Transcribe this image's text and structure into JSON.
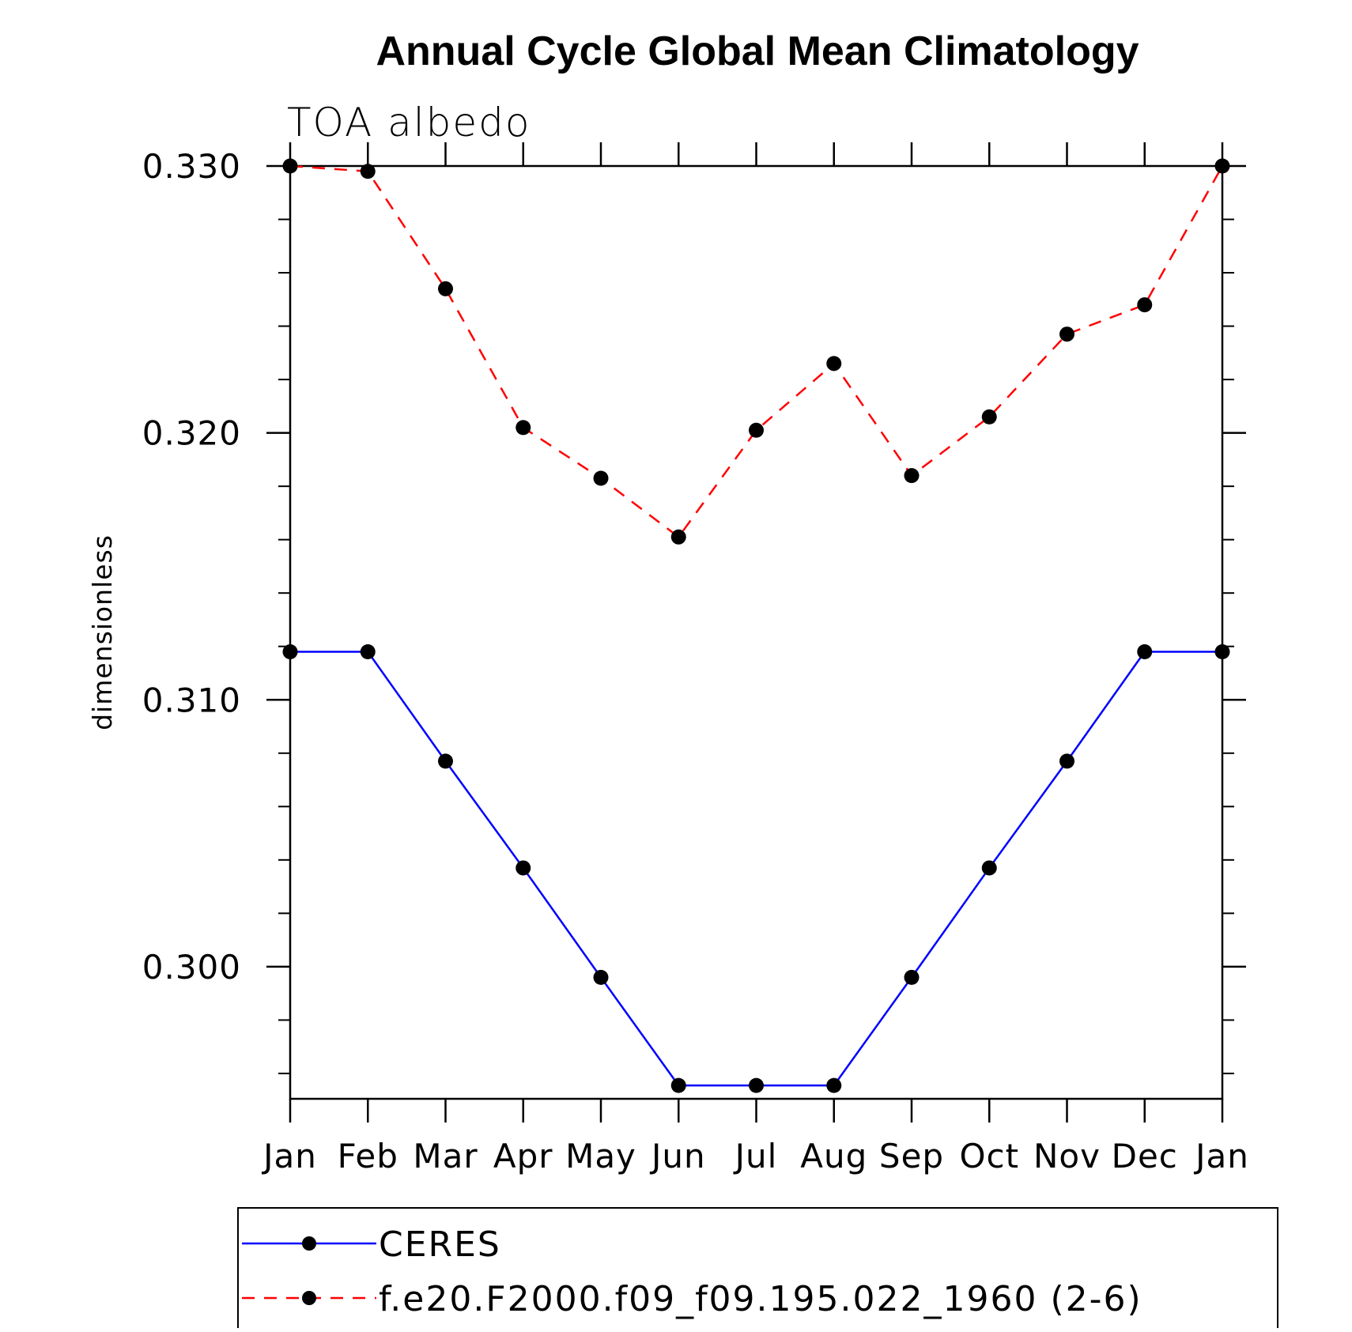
{
  "chart_data": {
    "type": "line",
    "title": "Annual Cycle Global Mean Climatology",
    "subtitle": "TOA albedo",
    "xlabel": "",
    "ylabel": "dimensionless",
    "categories": [
      "Jan",
      "Feb",
      "Mar",
      "Apr",
      "May",
      "Jun",
      "Jul",
      "Aug",
      "Sep",
      "Oct",
      "Nov",
      "Dec",
      "Jan"
    ],
    "yticks": [
      "0.330",
      "0.320",
      "0.310",
      "0.300"
    ],
    "ytick_values": [
      0.33,
      0.32,
      0.31,
      0.3
    ],
    "ylim": [
      0.29505,
      0.33
    ],
    "y_minor_step": 0.002,
    "grid": false,
    "legend_position": "bottom",
    "series": [
      {
        "name": "CERES",
        "color": "#0000ff",
        "dash": "solid",
        "marker": "filled-circle",
        "values": [
          0.3118,
          0.3118,
          0.3077,
          0.3037,
          0.2996,
          0.29555,
          0.29555,
          0.29555,
          0.2996,
          0.3037,
          0.3077,
          0.3118,
          0.3118
        ]
      },
      {
        "name": "f.e20.F2000.f09_f09.195.022_1960 (2-6)",
        "color": "#ff0000",
        "dash": "dashed",
        "marker": "filled-circle",
        "values": [
          0.33,
          0.3298,
          0.3254,
          0.3202,
          0.3183,
          0.3161,
          0.3201,
          0.3226,
          0.3184,
          0.3206,
          0.3237,
          0.3248,
          0.33
        ]
      }
    ]
  }
}
